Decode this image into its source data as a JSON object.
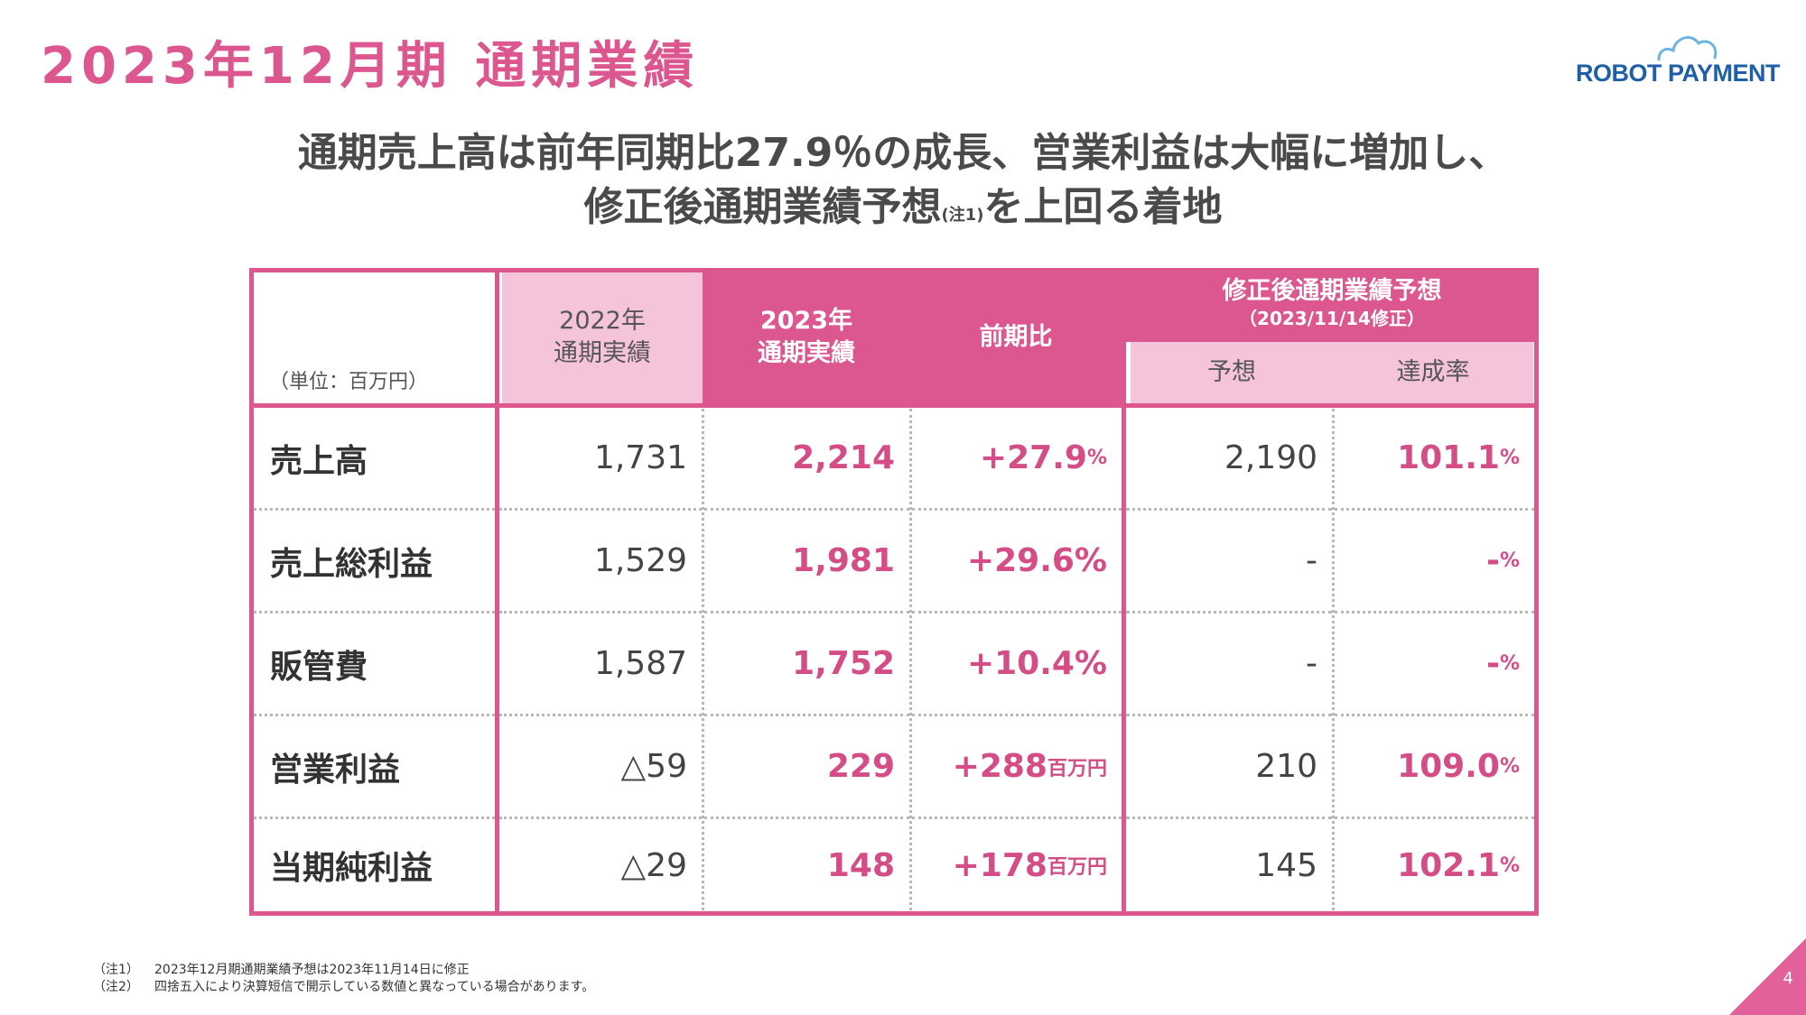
{
  "page": {
    "title": "2023年12月期 通期業績",
    "logo_text": "ROBOT PAYMENT",
    "headline_line1": "通期売上高は前年同期比27.9％の成長、営業利益は大幅に増加し、",
    "headline_line2_before": "修正後通期業績予想",
    "headline_note_mark": "(注1)",
    "headline_line2_after": "を上回る着地",
    "page_number": "4"
  },
  "table": {
    "unit_label": "（単位：百万円）",
    "headers": {
      "fy2022": [
        "2022年",
        "通期実績"
      ],
      "fy2023": [
        "2023年",
        "通期実績"
      ],
      "yoy": "前期比",
      "forecast_group": "修正後通期業績予想",
      "forecast_date": "（2023/11/14修正）",
      "forecast": "予想",
      "achievement": "達成率"
    },
    "rows": [
      {
        "label": "売上高",
        "fy2022": "1,731",
        "fy2023": "2,214",
        "yoy": "+27.9",
        "yoy_unit": "%",
        "forecast": "2,190",
        "achievement": "101.1",
        "achievement_unit": "%"
      },
      {
        "label": "売上総利益",
        "fy2022": "1,529",
        "fy2023": "1,981",
        "yoy": "+29.6%",
        "yoy_unit": "",
        "forecast": "-",
        "achievement": "-",
        "achievement_unit": "%"
      },
      {
        "label": "販管費",
        "fy2022": "1,587",
        "fy2023": "1,752",
        "yoy": "+10.4%",
        "yoy_unit": "",
        "forecast": "-",
        "achievement": "-",
        "achievement_unit": "%"
      },
      {
        "label": "営業利益",
        "fy2022": "△59",
        "fy2023": "229",
        "yoy": "+288",
        "yoy_unit": "百万円",
        "forecast": "210",
        "achievement": "109.0",
        "achievement_unit": "%"
      },
      {
        "label": "当期純利益",
        "fy2022": "△29",
        "fy2023": "148",
        "yoy": "+178",
        "yoy_unit": "百万円",
        "forecast": "145",
        "achievement": "102.1",
        "achievement_unit": "%"
      }
    ]
  },
  "footnotes": [
    {
      "mark": "（注1）",
      "text": "2023年12月期通期業績予想は2023年11月14日に修正"
    },
    {
      "mark": "（注2）",
      "text": "四捨五入により決算短信で開示している数値と異なっている場合があります。"
    }
  ],
  "colors": {
    "brand_pink": "#dc5690",
    "light_pink": "#f5c3da",
    "logo_blue": "#1e5fa8"
  }
}
